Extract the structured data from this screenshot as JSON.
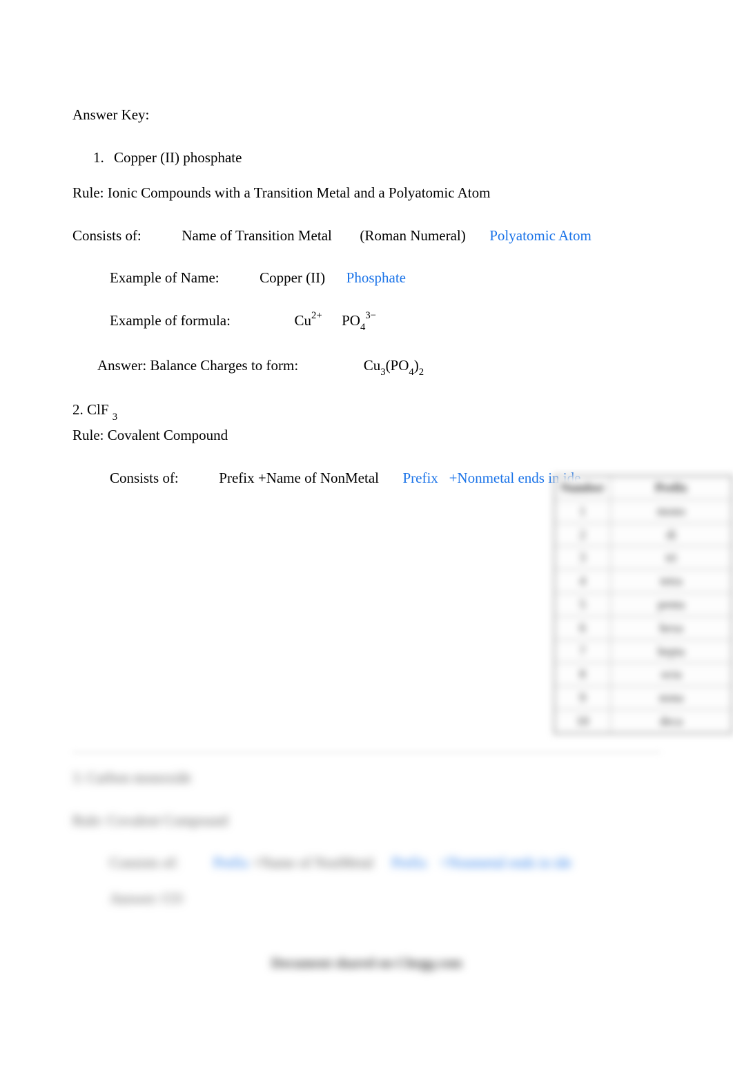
{
  "heading": "Answer Key:",
  "item1": {
    "number": "1.",
    "title": "Copper (II) phosphate",
    "rule": "Rule: Ionic Compounds with a Transition Metal and a Polyatomic Atom",
    "consists_label": "Consists of:",
    "consists_part1": "Name of Transition Metal",
    "consists_part2": "(Roman Numeral)",
    "consists_part3": "Polyatomic Atom",
    "example_name_label": "Example of Name:",
    "example_name_part1": "Copper (II)",
    "example_name_part2": "Phosphate",
    "example_formula_label": "Example of formula:",
    "formula_cu": "Cu",
    "formula_cu_charge": "2+",
    "formula_po": "PO",
    "formula_po_sub": "4",
    "formula_po_charge": "3−",
    "answer_label": "Answer: Balance Charges to form:",
    "answer_cu": "Cu",
    "answer_cu_sub": "3",
    "answer_open": "(PO",
    "answer_po_sub": "4",
    "answer_close": ")",
    "answer_final_sub": "2"
  },
  "item2": {
    "label": "2. ClF",
    "sub": "3",
    "rule": "Rule: Covalent Compound",
    "consists_label": "Consists of:",
    "consists_part1": "Prefix +Name of NonMetal",
    "consists_part2": "Prefix",
    "consists_part3": "+Nonmetal ends in ide"
  },
  "prefix_table": {
    "header_num": "Number",
    "header_prefix": "Prefix",
    "rows": [
      [
        "1",
        "mono"
      ],
      [
        "2",
        "di"
      ],
      [
        "3",
        "tri"
      ],
      [
        "4",
        "tetra"
      ],
      [
        "5",
        "penta"
      ],
      [
        "6",
        "hexa"
      ],
      [
        "7",
        "hepta"
      ],
      [
        "8",
        "octa"
      ],
      [
        "9",
        "nona"
      ],
      [
        "10",
        "deca"
      ]
    ]
  },
  "blur": {
    "line1": "3. Carbon monoxide",
    "line2": "Rule: Covalent Compound",
    "consists_label": "Consists of:",
    "c_part1": "Prefix",
    "c_part2": "+Name of NonMetal",
    "c_part3": "Prefix",
    "c_part4": "+Nonmetal ends in ide",
    "answer": "Answer: CO",
    "watermark": "Document shared on Chegg.com"
  },
  "colors": {
    "link": "#1a73e8",
    "text": "#000000",
    "bg": "#ffffff"
  }
}
